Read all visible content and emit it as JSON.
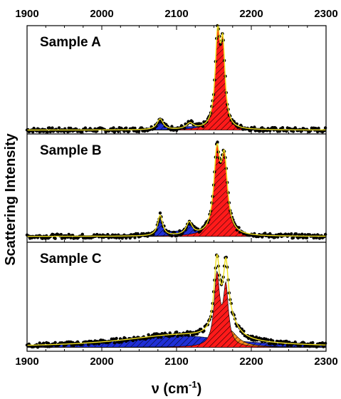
{
  "chart_data": {
    "type": "line",
    "xlabel": "ν (cm",
    "xlabel_sup": "-1",
    "xlabel_close": ")",
    "ylabel": "Scattering Intensity",
    "xlim": [
      1900,
      2300
    ],
    "x_ticks": [
      "1900",
      "2000",
      "2100",
      "2200",
      "2300"
    ],
    "x_ticks_top": [
      "1900",
      "2000",
      "2100",
      "2200",
      "2300"
    ],
    "tick_positions": [
      1900,
      2000,
      2100,
      2200,
      2300
    ],
    "fill_colors": {
      "blue": "#1f2fd6",
      "red": "#ff1a1a",
      "orange": "#f28a1c"
    },
    "fit_color": "#f0e020",
    "data_color": "#000000",
    "panels": [
      {
        "label": "Sample A",
        "ylim": [
          0,
          1
        ],
        "baseline": 0.04,
        "fill_bands": [
          {
            "color": "blue",
            "peaks": [
              [
                2078,
                0.09,
                5
              ],
              [
                2120,
                0.03,
                30
              ],
              [
                2185,
                0.02,
                40
              ]
            ]
          },
          {
            "color": "red",
            "peaks": [
              [
                2155,
                0.92,
                4
              ],
              [
                2162,
                0.75,
                3.5
              ]
            ]
          }
        ],
        "fit_peaks": [
          [
            2078,
            0.11,
            5
          ],
          [
            2118,
            0.06,
            6
          ],
          [
            2155,
            0.92,
            4
          ],
          [
            2162,
            0.75,
            3.5
          ]
        ]
      },
      {
        "label": "Sample B",
        "ylim": [
          0,
          1
        ],
        "baseline": 0.06,
        "fill_bands": [
          {
            "color": "blue",
            "peaks": [
              [
                2078,
                0.14,
                4
              ],
              [
                2118,
                0.08,
                5
              ],
              [
                2120,
                0.05,
                60
              ]
            ]
          },
          {
            "color": "red",
            "peaks": [
              [
                2154,
                0.8,
                5
              ],
              [
                2164,
                0.72,
                5
              ]
            ]
          }
        ],
        "fit_peaks": [
          [
            2078,
            0.21,
            4
          ],
          [
            2117,
            0.13,
            5
          ],
          [
            2154,
            0.8,
            5
          ],
          [
            2164,
            0.72,
            5
          ]
        ]
      },
      {
        "label": "Sample C",
        "ylim": [
          0,
          1
        ],
        "baseline": 0.04,
        "fill_bands": [
          {
            "color": "blue",
            "peaks": [
              [
                2100,
                0.12,
                90
              ]
            ]
          },
          {
            "color": "orange",
            "peaks": [
              [
                2170,
                0.18,
                14
              ]
            ]
          },
          {
            "color": "red",
            "peaks": [
              [
                2154,
                0.72,
                4.5
              ],
              [
                2166,
                0.58,
                4
              ]
            ]
          }
        ],
        "fit_peaks": [
          [
            2100,
            0.12,
            90
          ],
          [
            2170,
            0.18,
            14
          ],
          [
            2154,
            0.72,
            4.5
          ],
          [
            2166,
            0.58,
            4
          ]
        ]
      }
    ]
  }
}
